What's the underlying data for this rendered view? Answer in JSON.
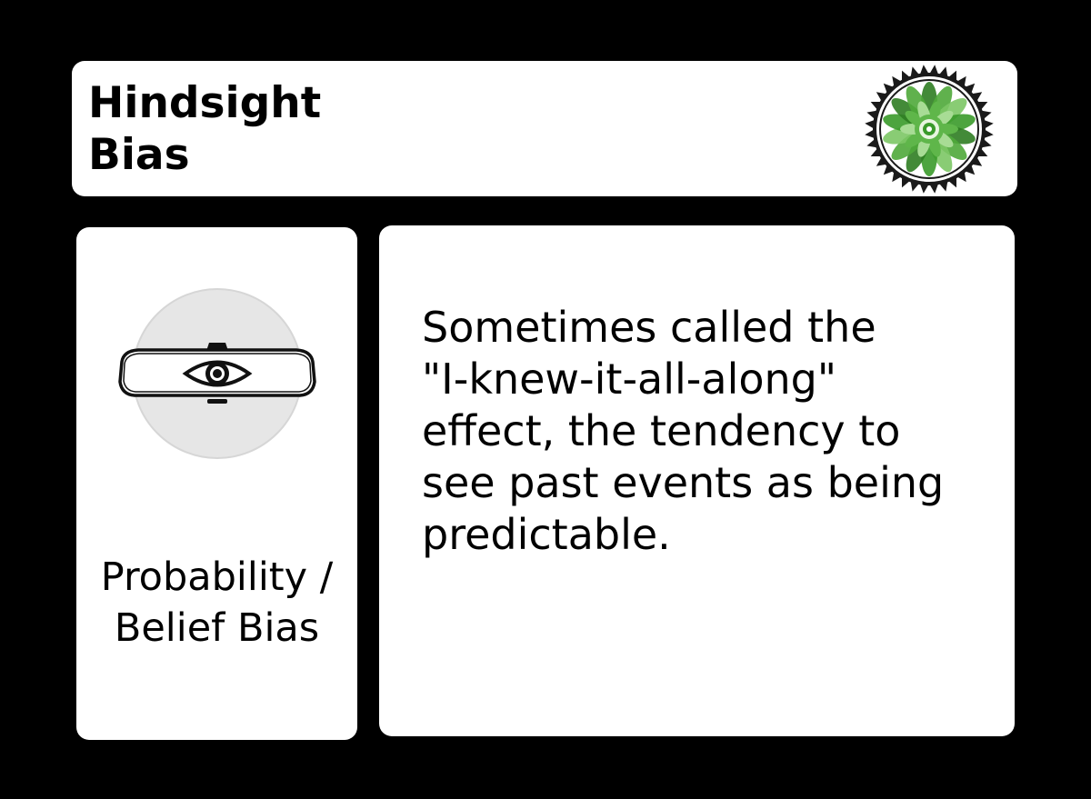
{
  "card": {
    "title_lines": [
      "Hindsight",
      "Bias"
    ],
    "emblem_icon": "green-leaf-seal-icon",
    "category_icon": "rearview-mirror-eye-icon",
    "category_lines": [
      "Probability /",
      "Belief Bias"
    ],
    "description_lines": [
      "Sometimes called the",
      "\"I-knew-it-all-along\"",
      "effect, the tendency to",
      "see past events as being",
      "predictable."
    ]
  },
  "colors": {
    "background": "#000000",
    "card": "#ffffff",
    "text": "#000000",
    "icon_circle": "#e6e6e6",
    "emblem_green": "#3a9a2a"
  }
}
